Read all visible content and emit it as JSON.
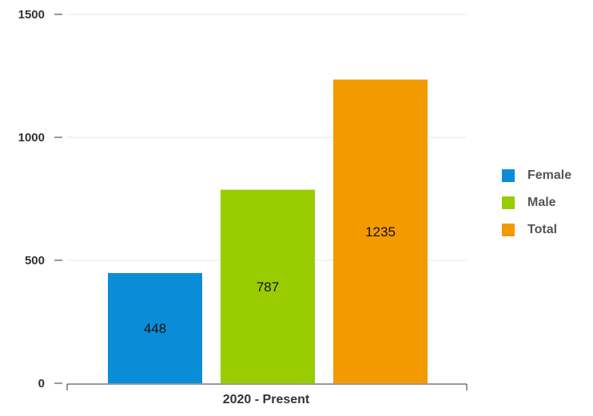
{
  "chart_data": {
    "type": "bar",
    "categories": [
      "2020 - Present"
    ],
    "series": [
      {
        "name": "Female",
        "values": [
          448
        ],
        "color": "#0a8dd6"
      },
      {
        "name": "Male",
        "values": [
          787
        ],
        "color": "#99cc00"
      },
      {
        "name": "Total",
        "values": [
          1235
        ],
        "color": "#f39a00"
      }
    ],
    "ylim": [
      0,
      1500
    ],
    "y_ticks": [
      0,
      500,
      1000,
      1500
    ],
    "y_tick_labels": [
      "0",
      "500",
      "1000",
      "1500"
    ],
    "grid": true,
    "legend_position": "right",
    "data_labels": [
      "448",
      "787",
      "1235"
    ]
  }
}
